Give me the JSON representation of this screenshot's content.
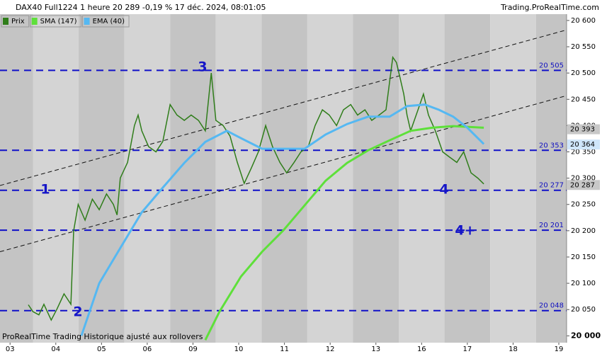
{
  "chart_data": {
    "type": "line",
    "title": "DAX40 Full1224 1 heure 20 289 -0,19 % 17 déc. 2024, 08:01:05",
    "source": "Trading.ProRealTime.com",
    "footer": "ProRealTime Trading Historique ajusté aux rollovers",
    "xlim": [
      -0.22,
      12.17
    ],
    "xticks": [
      {
        "value": 0,
        "label": "03"
      },
      {
        "value": 1,
        "label": "04"
      },
      {
        "value": 2,
        "label": "05"
      },
      {
        "value": 3,
        "label": "06"
      },
      {
        "value": 4,
        "label": "09"
      },
      {
        "value": 5,
        "label": "10"
      },
      {
        "value": 6,
        "label": "11"
      },
      {
        "value": 7,
        "label": "12"
      },
      {
        "value": 8,
        "label": "13"
      },
      {
        "value": 9,
        "label": "16"
      },
      {
        "value": 10,
        "label": "17"
      },
      {
        "value": 11,
        "label": "18"
      },
      {
        "value": 12,
        "label": "19"
      }
    ],
    "ylim": [
      19987,
      20612
    ],
    "yticks": [
      {
        "value": 20000,
        "label": "20 000"
      },
      {
        "value": 20050,
        "label": "20 050"
      },
      {
        "value": 20100,
        "label": "20 100"
      },
      {
        "value": 20150,
        "label": "20 150"
      },
      {
        "value": 20200,
        "label": "20 200"
      },
      {
        "value": 20250,
        "label": "20 250"
      },
      {
        "value": 20300,
        "label": "20 300"
      },
      {
        "value": 20350,
        "label": "20 350"
      },
      {
        "value": 20400,
        "label": "20 400"
      },
      {
        "value": 20450,
        "label": "20 450"
      },
      {
        "value": 20500,
        "label": "20 500"
      },
      {
        "value": 20550,
        "label": "20 550"
      },
      {
        "value": 20600,
        "label": "20 600"
      }
    ],
    "series": [
      {
        "name": "Prix",
        "color": "#2f7d1a",
        "last_label": "20 287",
        "last_value": 20287,
        "x": [
          0.4,
          0.5,
          0.63,
          0.74,
          0.9,
          1.02,
          1.18,
          1.33,
          1.39,
          1.49,
          1.64,
          1.8,
          1.95,
          2.11,
          2.26,
          2.34,
          2.41,
          2.57,
          2.72,
          2.8,
          2.88,
          3.03,
          3.19,
          3.34,
          3.5,
          3.65,
          3.81,
          3.96,
          4.12,
          4.27,
          4.4,
          4.5,
          4.66,
          4.81,
          4.97,
          5.12,
          5.28,
          5.43,
          5.59,
          5.74,
          5.9,
          6.05,
          6.21,
          6.36,
          6.52,
          6.67,
          6.83,
          6.98,
          7.14,
          7.29,
          7.45,
          7.6,
          7.76,
          7.91,
          8.07,
          8.22,
          8.37,
          8.45,
          8.53,
          8.61,
          8.68,
          8.76,
          8.92,
          9.04,
          9.15,
          9.3,
          9.46,
          9.61,
          9.77,
          9.92,
          10.08,
          10.23,
          10.36
        ],
        "values": [
          20059,
          20046,
          20040,
          20060,
          20030,
          20050,
          20080,
          20060,
          20200,
          20250,
          20220,
          20260,
          20240,
          20270,
          20250,
          20230,
          20300,
          20330,
          20400,
          20420,
          20390,
          20360,
          20350,
          20370,
          20440,
          20420,
          20410,
          20420,
          20410,
          20390,
          20500,
          20410,
          20400,
          20380,
          20330,
          20290,
          20320,
          20350,
          20400,
          20360,
          20330,
          20310,
          20330,
          20350,
          20360,
          20400,
          20430,
          20420,
          20400,
          20430,
          20440,
          20420,
          20430,
          20410,
          20420,
          20430,
          20530,
          20520,
          20490,
          20460,
          20420,
          20390,
          20430,
          20460,
          20420,
          20390,
          20350,
          20340,
          20330,
          20350,
          20310,
          20300,
          20289
        ]
      },
      {
        "name": "SMA (147)",
        "color": "#5ee03a",
        "last_label": "20 393",
        "last_value": 20393,
        "x": [
          4.27,
          4.58,
          5.05,
          5.51,
          5.98,
          6.44,
          6.9,
          7.37,
          7.83,
          8.3,
          8.76,
          9.23,
          9.69,
          10.36
        ],
        "values": [
          19992,
          20046,
          20113,
          20160,
          20201,
          20248,
          20295,
          20329,
          20353,
          20372,
          20390,
          20396,
          20399,
          20396
        ]
      },
      {
        "name": "EMA (40)",
        "color": "#55b8f2",
        "last_label": "20 364",
        "last_value": 20364,
        "x": [
          1.56,
          1.95,
          2.41,
          2.88,
          3.34,
          3.81,
          4.27,
          4.74,
          5.05,
          5.51,
          5.98,
          6.44,
          6.9,
          7.37,
          7.83,
          8.3,
          8.68,
          9.07,
          9.38,
          9.69,
          10.0,
          10.36
        ],
        "values": [
          20000,
          20100,
          20167,
          20235,
          20282,
          20329,
          20369,
          20390,
          20376,
          20356,
          20356,
          20356,
          20383,
          20403,
          20417,
          20417,
          20437,
          20440,
          20430,
          20417,
          20396,
          20365
        ]
      }
    ],
    "levels": [
      {
        "value": 20505,
        "label": "20 505"
      },
      {
        "value": 20353,
        "label": "20 353"
      },
      {
        "value": 20277,
        "label": "20 277"
      },
      {
        "value": 20201,
        "label": "20 201"
      },
      {
        "value": 20048,
        "label": "20 048"
      }
    ],
    "trendlines": [
      {
        "x": [
          -0.22,
          12.17
        ],
        "values": [
          20286,
          20582
        ]
      },
      {
        "x": [
          -0.22,
          12.17
        ],
        "values": [
          20160,
          20457
        ]
      }
    ],
    "annotations": [
      "1",
      "2",
      "3",
      "4",
      "4+"
    ]
  }
}
